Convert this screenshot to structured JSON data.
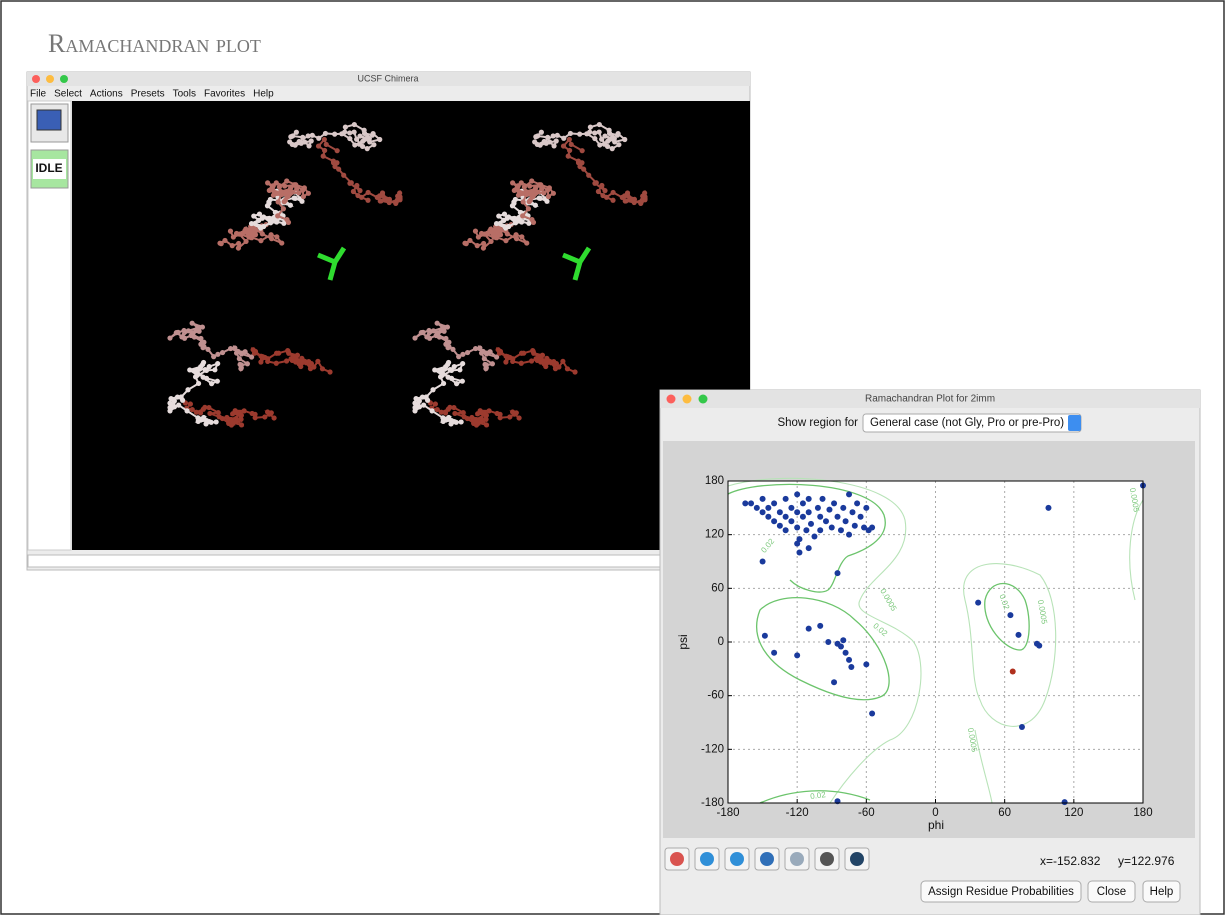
{
  "slide": {
    "title": "Ramachandran plot"
  },
  "chimera": {
    "title": "UCSF Chimera",
    "menu": [
      "File",
      "Select",
      "Actions",
      "Presets",
      "Tools",
      "Favorites",
      "Help"
    ],
    "status": "IDLE"
  },
  "rama_window": {
    "title": "Ramachandran Plot for 2imm",
    "region_label": "Show region for",
    "region_value": "General case (not Gly, Pro or pre-Pro)",
    "cursor_x": "x=-152.832",
    "cursor_y": "y=122.976",
    "buttons": [
      "Assign Residue Probabilities",
      "Close",
      "Help"
    ]
  },
  "chart_data": {
    "type": "scatter",
    "xlabel": "phi",
    "ylabel": "psi",
    "xlim": [
      -180,
      180
    ],
    "ylim": [
      -180,
      180
    ],
    "xticks": [
      -180,
      -120,
      -60,
      0,
      60,
      120,
      180
    ],
    "yticks": [
      -180,
      -120,
      -60,
      0,
      60,
      120,
      180
    ],
    "grid": true,
    "contour_labels": [
      "0.02",
      "0.0005"
    ],
    "series": [
      {
        "color": "#1a3a9c",
        "x": [
          -165,
          -160,
          -155,
          -150,
          -150,
          -145,
          -145,
          -140,
          -140,
          -135,
          -135,
          -130,
          -130,
          -130,
          -125,
          -125,
          -120,
          -120,
          -120,
          -118,
          -115,
          -115,
          -112,
          -110,
          -110,
          -108,
          -105,
          -102,
          -100,
          -100,
          -98,
          -95,
          -92,
          -90,
          -88,
          -85,
          -82,
          -80,
          -78,
          -75,
          -75,
          -72,
          -70,
          -68,
          -65,
          -62,
          -60,
          -58,
          -120,
          -118,
          -110,
          -55,
          -150,
          -85,
          180,
          98,
          37,
          65,
          72,
          88,
          90,
          75,
          112,
          -148,
          -140,
          -110,
          -100,
          -120,
          -93,
          -85,
          -82,
          -80,
          -78,
          -75,
          -73,
          -60,
          -88,
          -55,
          -85
        ],
        "y": [
          155,
          155,
          150,
          160,
          145,
          150,
          140,
          155,
          135,
          145,
          130,
          160,
          140,
          125,
          150,
          135,
          165,
          145,
          128,
          115,
          155,
          140,
          125,
          160,
          145,
          132,
          118,
          150,
          140,
          125,
          160,
          135,
          148,
          128,
          155,
          140,
          125,
          150,
          135,
          165,
          120,
          145,
          130,
          155,
          140,
          128,
          150,
          125,
          110,
          100,
          105,
          128,
          90,
          77,
          175,
          150,
          44,
          30,
          8,
          -2,
          -4,
          -95,
          -179,
          7,
          -12,
          15,
          18,
          -15,
          0,
          -2,
          -5,
          2,
          -12,
          -20,
          -28,
          -25,
          -45,
          -80,
          -178
        ]
      },
      {
        "color": "#b0301e",
        "x": [
          67
        ],
        "y": [
          -33
        ]
      }
    ]
  }
}
